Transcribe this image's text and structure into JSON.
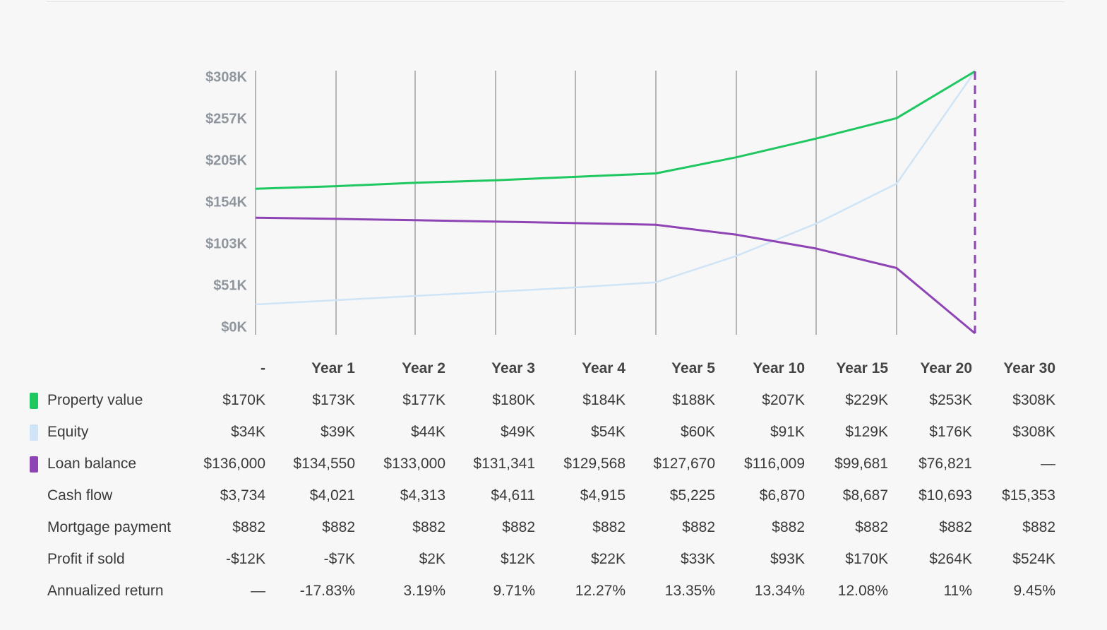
{
  "colors": {
    "property_value": "#1ec760",
    "equity": "#cfe4f6",
    "loan_balance": "#8e44b4",
    "gridline": "#8a8a8a"
  },
  "chart_data": {
    "type": "line",
    "x": [
      "-",
      "Year 1",
      "Year 2",
      "Year 3",
      "Year 4",
      "Year 5",
      "Year 10",
      "Year 15",
      "Year 20",
      "Year 30"
    ],
    "ylim": [
      0,
      308
    ],
    "yticks": [
      "$0K",
      "$51K",
      "$103K",
      "$154K",
      "$205K",
      "$257K",
      "$308K"
    ],
    "ytick_values": [
      0,
      51,
      103,
      154,
      205,
      257,
      308
    ],
    "grid": true,
    "series": [
      {
        "name": "Property value",
        "color": "#1ec760",
        "values": [
          170,
          173,
          177,
          180,
          184,
          188,
          207,
          229,
          253,
          308
        ]
      },
      {
        "name": "Equity",
        "color": "#cfe4f6",
        "values": [
          34,
          39,
          44,
          49,
          54,
          60,
          91,
          129,
          176,
          308
        ]
      },
      {
        "name": "Loan balance",
        "color": "#8e44b4",
        "values": [
          136,
          134.55,
          133,
          131.341,
          129.568,
          127.67,
          116.009,
          99.681,
          76.821,
          0
        ]
      }
    ]
  },
  "table": {
    "columns": [
      "-",
      "Year 1",
      "Year 2",
      "Year 3",
      "Year 4",
      "Year 5",
      "Year 10",
      "Year 15",
      "Year 20",
      "Year 30"
    ],
    "rows": [
      {
        "label": "Property value",
        "swatch": "#1ec760",
        "values": [
          "$170K",
          "$173K",
          "$177K",
          "$180K",
          "$184K",
          "$188K",
          "$207K",
          "$229K",
          "$253K",
          "$308K"
        ]
      },
      {
        "label": "Equity",
        "swatch": "#cfe4f6",
        "values": [
          "$34K",
          "$39K",
          "$44K",
          "$49K",
          "$54K",
          "$60K",
          "$91K",
          "$129K",
          "$176K",
          "$308K"
        ]
      },
      {
        "label": "Loan balance",
        "swatch": "#8e44b4",
        "values": [
          "$136,000",
          "$134,550",
          "$133,000",
          "$131,341",
          "$129,568",
          "$127,670",
          "$116,009",
          "$99,681",
          "$76,821",
          "—"
        ]
      },
      {
        "label": "Cash flow",
        "swatch": "",
        "values": [
          "$3,734",
          "$4,021",
          "$4,313",
          "$4,611",
          "$4,915",
          "$5,225",
          "$6,870",
          "$8,687",
          "$10,693",
          "$15,353"
        ]
      },
      {
        "label": "Mortgage payment",
        "swatch": "",
        "values": [
          "$882",
          "$882",
          "$882",
          "$882",
          "$882",
          "$882",
          "$882",
          "$882",
          "$882",
          "$882"
        ]
      },
      {
        "label": "Profit if sold",
        "swatch": "",
        "values": [
          "-$12K",
          "-$7K",
          "$2K",
          "$12K",
          "$22K",
          "$33K",
          "$93K",
          "$170K",
          "$264K",
          "$524K"
        ]
      },
      {
        "label": "Annualized return",
        "swatch": "",
        "values": [
          "—",
          "-17.83%",
          "3.19%",
          "9.71%",
          "12.27%",
          "13.35%",
          "13.34%",
          "12.08%",
          "11%",
          "9.45%"
        ]
      }
    ]
  }
}
